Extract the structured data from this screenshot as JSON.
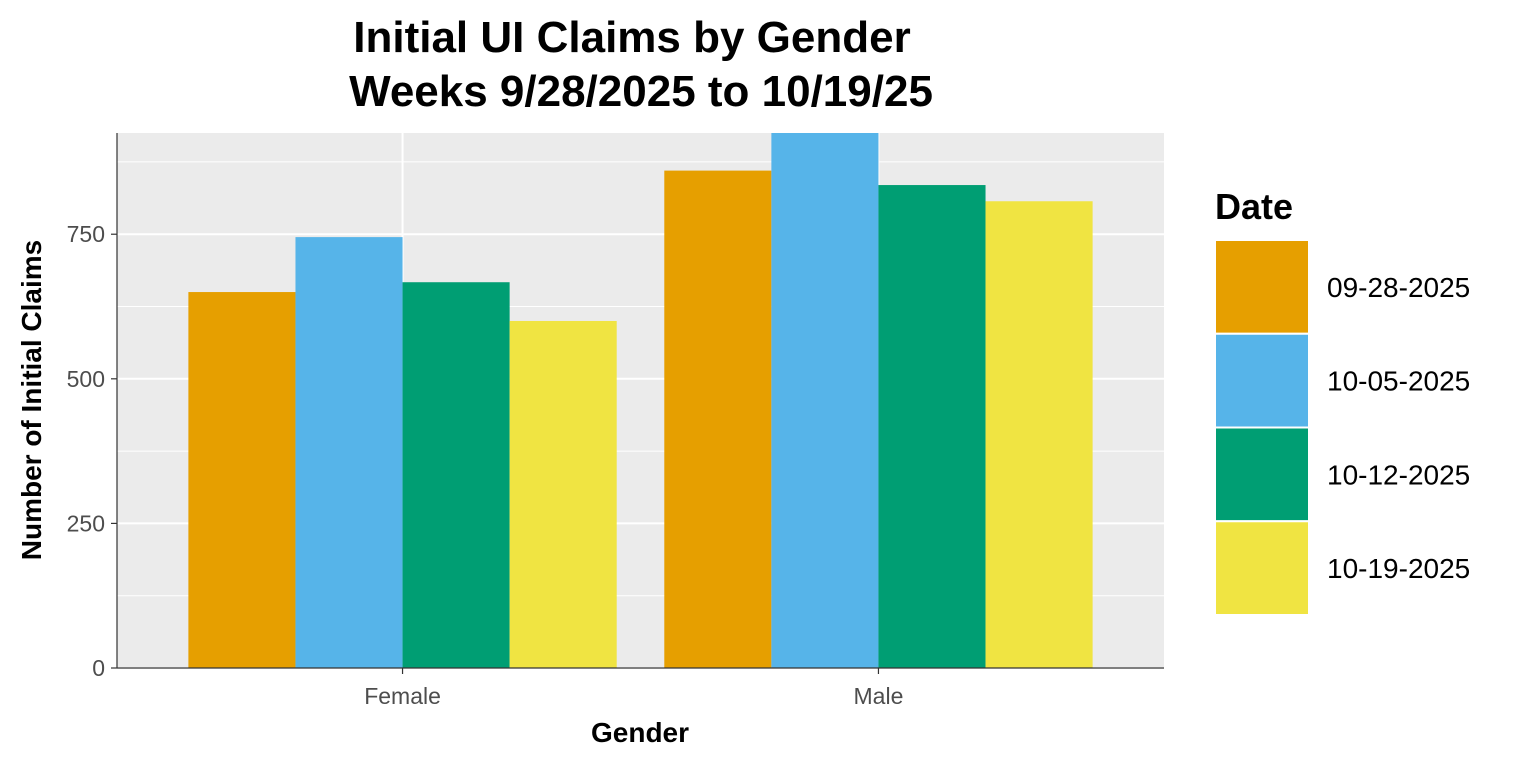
{
  "chart_data": {
    "type": "bar",
    "title_lines": [
      "Initial UI Claims by Gender",
      "Weeks  9/28/2025 to 10/19/25"
    ],
    "xlabel": "Gender",
    "ylabel": "Number of Initial Claims",
    "categories": [
      "Female",
      "Male"
    ],
    "series": [
      {
        "name": "09-28-2025",
        "color": "#E69F00",
        "values": [
          650,
          860
        ]
      },
      {
        "name": "10-05-2025",
        "color": "#56B4E9",
        "values": [
          745,
          925
        ]
      },
      {
        "name": "10-12-2025",
        "color": "#009E73",
        "values": [
          667,
          835
        ]
      },
      {
        "name": "10-19-2025",
        "color": "#F0E442",
        "values": [
          600,
          807
        ]
      }
    ],
    "ylim": [
      0,
      925
    ],
    "yticks": [
      0,
      250,
      500,
      750
    ],
    "ytick_labels": [
      "0",
      "250",
      "500",
      "750"
    ],
    "grid": true,
    "panel_background": "#EBEBEB",
    "legend": {
      "title": "Date",
      "placement": "right"
    }
  }
}
